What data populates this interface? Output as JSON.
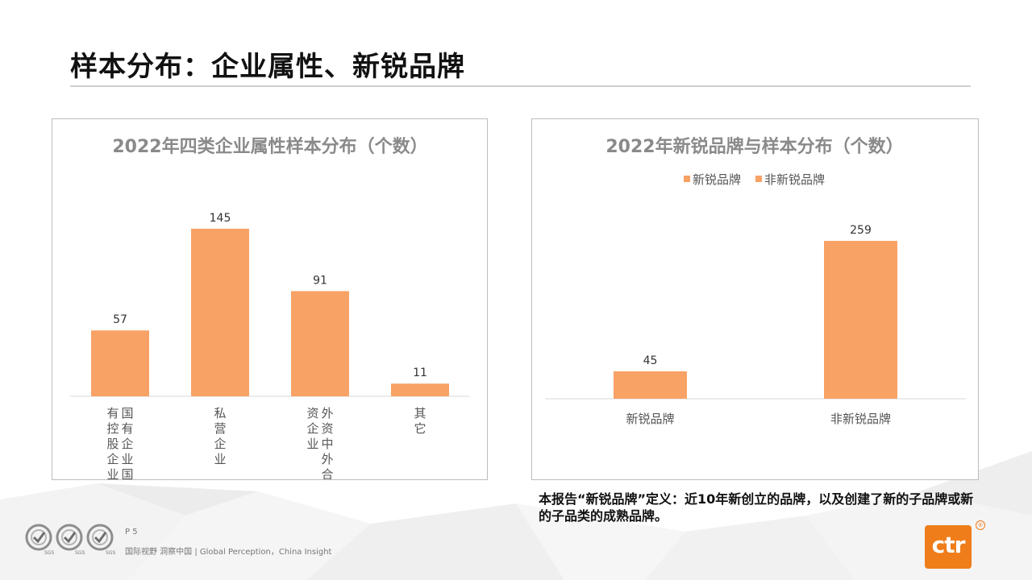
{
  "page": {
    "title": "样本分布：企业属性、新锐品牌",
    "note": "本报告“新锐品牌”定义：近10年新创立的品牌，以及创建了新的子品牌或新的子品类的成熟品牌。",
    "page_number": "P 5",
    "slogan": "国际视野  洞察中国 | Global Perception，China Insight",
    "certification_badges": [
      "SGS",
      "SGS",
      "SGS"
    ],
    "logo": {
      "text": "ctr",
      "mark": "®"
    },
    "colors": {
      "bar": "#f9a266",
      "brand": "#ef7d1a"
    }
  },
  "chart_data": [
    {
      "type": "bar",
      "title": "2022年四类企业属性样本分布（个数）",
      "categories": [
        "国有企业国有控股企业",
        "私营企业",
        "外资中外合资企业",
        "其它"
      ],
      "category_label_lines": [
        [
          "国有企业国",
          "有控股企业"
        ],
        [
          "私营企业"
        ],
        [
          "外资中外合",
          "资企业"
        ],
        [
          "其它"
        ]
      ],
      "values": [
        57,
        145,
        91,
        11
      ],
      "ylim": [
        0,
        170
      ],
      "grid": false,
      "legend": null,
      "color": "#f9a266"
    },
    {
      "type": "bar",
      "title": "2022年新锐品牌与样本分布（个数）",
      "categories": [
        "新锐品牌",
        "非新锐品牌"
      ],
      "values": [
        45,
        259
      ],
      "ylim": [
        0,
        300
      ],
      "grid": false,
      "legend": {
        "position": "top",
        "entries": [
          "新锐品牌",
          "非新锐品牌"
        ]
      },
      "color": "#f9a266"
    }
  ]
}
